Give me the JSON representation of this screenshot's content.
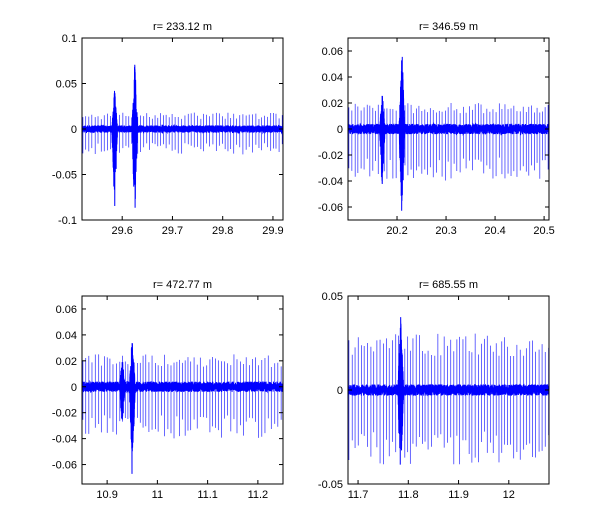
{
  "chart_data": [
    {
      "type": "line",
      "title": "r= 233.12 m",
      "xlim": [
        29.52,
        29.92
      ],
      "ylim": [
        -0.1,
        0.1
      ],
      "xticks": [
        29.6,
        29.7,
        29.8,
        29.9
      ],
      "xtick_labels": [
        "29.6",
        "29.7",
        "29.8",
        "29.9"
      ],
      "yticks": [
        -0.1,
        -0.05,
        0,
        0.05,
        0.1
      ],
      "ytick_labels": [
        "-0.1",
        "-0.05",
        "0",
        "0.05",
        "0.1"
      ],
      "series": [
        {
          "color": "#0000ff",
          "noise_amp": 0.004,
          "spike_period": 0.006,
          "spike_up": 0.018,
          "spike_down": 0.028,
          "bursts": [
            {
              "x": 29.585,
              "amp_up": 0.045,
              "amp_down": 0.09,
              "width": 0.006
            },
            {
              "x": 29.625,
              "amp_up": 0.075,
              "amp_down": 0.1,
              "width": 0.006
            },
            {
              "x": 29.68,
              "amp_up": 0.006,
              "amp_down": 0.006,
              "width": 0.004
            },
            {
              "x": 29.82,
              "amp_up": 0.005,
              "amp_down": 0.005,
              "width": 0.004
            }
          ]
        }
      ]
    },
    {
      "type": "line",
      "title": "r= 346.59 m",
      "xlim": [
        20.1,
        20.51
      ],
      "ylim": [
        -0.07,
        0.07
      ],
      "xticks": [
        20.2,
        20.3,
        20.4,
        20.5
      ],
      "xtick_labels": [
        "20.2",
        "20.3",
        "20.4",
        "20.5"
      ],
      "yticks": [
        -0.06,
        -0.04,
        -0.02,
        0,
        0.02,
        0.04,
        0.06
      ],
      "ytick_labels": [
        "-0.06",
        "-0.04",
        "-0.02",
        "0",
        "0.02",
        "0.04",
        "0.06"
      ],
      "series": [
        {
          "color": "#0000ff",
          "noise_amp": 0.004,
          "spike_period": 0.006,
          "spike_up": 0.02,
          "spike_down": 0.04,
          "bursts": [
            {
              "x": 20.17,
              "amp_up": 0.028,
              "amp_down": 0.045,
              "width": 0.006
            },
            {
              "x": 20.21,
              "amp_up": 0.065,
              "amp_down": 0.07,
              "width": 0.006
            }
          ]
        }
      ]
    },
    {
      "type": "line",
      "title": "r= 472.77 m",
      "xlim": [
        10.85,
        11.25
      ],
      "ylim": [
        -0.075,
        0.07
      ],
      "xticks": [
        10.9,
        11,
        11.1,
        11.2
      ],
      "xtick_labels": [
        "10.9",
        "11",
        "11.1",
        "11.2"
      ],
      "yticks": [
        -0.06,
        -0.04,
        -0.02,
        0,
        0.02,
        0.04,
        0.06
      ],
      "ytick_labels": [
        "-0.06",
        "-0.04",
        "-0.02",
        "0",
        "0.02",
        "0.04",
        "0.06"
      ],
      "series": [
        {
          "color": "#0000ff",
          "noise_amp": 0.004,
          "spike_period": 0.006,
          "spike_up": 0.025,
          "spike_down": 0.04,
          "bursts": [
            {
              "x": 10.93,
              "amp_up": 0.025,
              "amp_down": 0.032,
              "width": 0.006
            },
            {
              "x": 10.95,
              "amp_up": 0.042,
              "amp_down": 0.075,
              "width": 0.006
            }
          ]
        }
      ]
    },
    {
      "type": "line",
      "title": "r= 685.55 m",
      "xlim": [
        11.68,
        12.08
      ],
      "ylim": [
        -0.05,
        0.05
      ],
      "xticks": [
        11.7,
        11.8,
        11.9,
        12
      ],
      "xtick_labels": [
        "11.7",
        "11.8",
        "11.9",
        "12"
      ],
      "yticks": [
        -0.05,
        0,
        0.05
      ],
      "ytick_labels": [
        "-0.05",
        "0",
        "0.05"
      ],
      "series": [
        {
          "color": "#0000ff",
          "noise_amp": 0.003,
          "spike_period": 0.006,
          "spike_up": 0.03,
          "spike_down": 0.04,
          "bursts": [
            {
              "x": 11.785,
              "amp_up": 0.043,
              "amp_down": 0.048,
              "width": 0.006
            }
          ]
        }
      ]
    }
  ]
}
